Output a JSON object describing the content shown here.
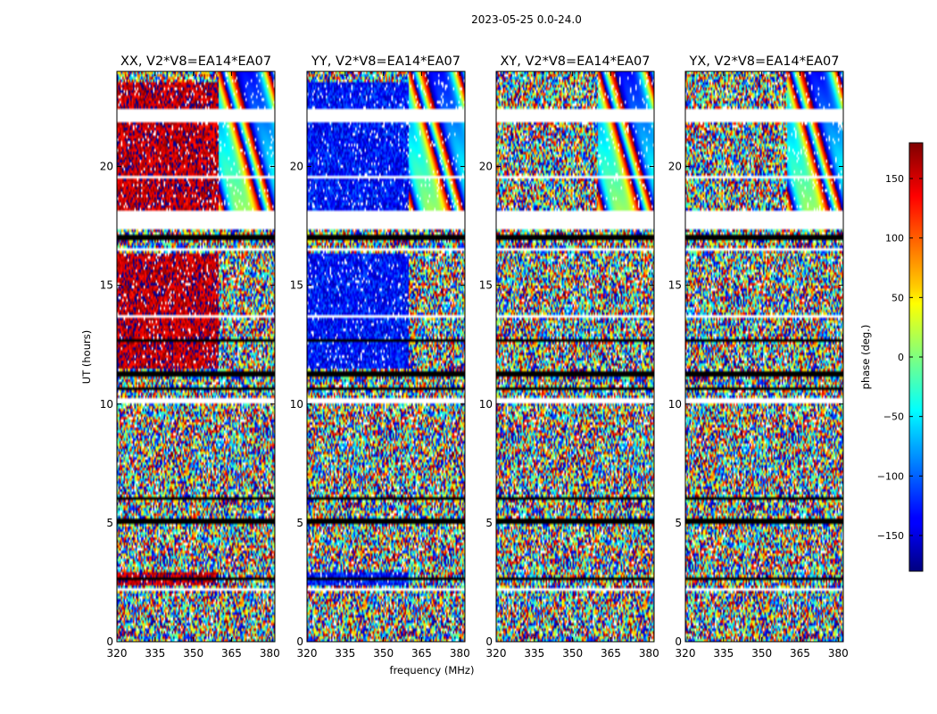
{
  "chart_data": {
    "type": "heatmap",
    "title": "2023-05-25 0.0-24.0",
    "xlabel": "frequency (MHz)",
    "ylabel": "UT (hours)",
    "xlim": [
      320,
      382
    ],
    "ylim": [
      0,
      24
    ],
    "xticks": [
      320,
      335,
      350,
      365,
      380
    ],
    "yticks": [
      0,
      5,
      10,
      15,
      20
    ],
    "panels": [
      {
        "title": "XX, V2*V8=EA14*EA07",
        "base_phase": 160,
        "base_until_mhz": 360
      },
      {
        "title": "YY, V2*V8=EA14*EA07",
        "base_phase": -130,
        "base_until_mhz": 360
      },
      {
        "title": "XY, V2*V8=EA14*EA07",
        "base_phase": null,
        "base_until_mhz": 360
      },
      {
        "title": "YX, V2*V8=EA14*EA07",
        "base_phase": null,
        "base_until_mhz": 360
      }
    ],
    "gaps_hours": [
      [
        17.3,
        18.1
      ],
      [
        21.9,
        22.4
      ],
      [
        10.0,
        10.2
      ],
      [
        13.6,
        13.8
      ],
      [
        16.5,
        16.6
      ],
      [
        2.1,
        2.2
      ],
      [
        0.1,
        0.15
      ],
      [
        23.2,
        23.25
      ],
      [
        19.5,
        19.6
      ]
    ],
    "dark_bands_hours": [
      [
        11.1,
        11.4
      ],
      [
        16.95,
        17.1
      ],
      [
        5.0,
        5.2
      ],
      [
        6.0,
        6.1
      ],
      [
        10.55,
        10.7
      ],
      [
        2.55,
        2.65
      ],
      [
        12.6,
        12.7
      ]
    ],
    "colorbar": {
      "label": "phase (deg.)",
      "range": [
        -180,
        180
      ],
      "ticks": [
        150,
        100,
        50,
        0,
        -50,
        -100,
        -150
      ],
      "tick_labels": [
        "150",
        "100",
        "50",
        "0",
        "−50",
        "−100",
        "−150"
      ]
    }
  }
}
